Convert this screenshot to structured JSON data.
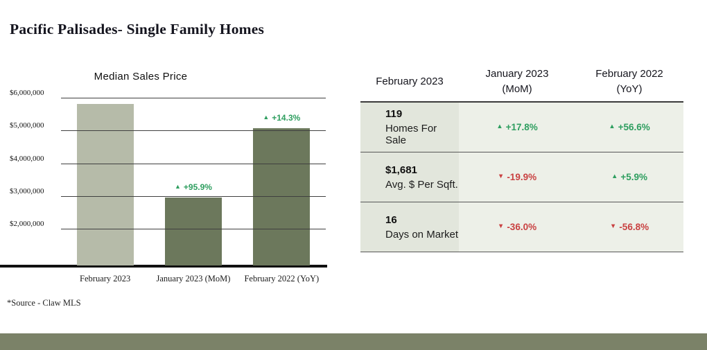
{
  "page": {
    "title": "Pacific Palisades- Single Family Homes",
    "source_note": "*Source - Claw MLS"
  },
  "colors": {
    "green": "#2e9e5f",
    "red": "#c94141",
    "band": "#7b8268",
    "row-bg-first": "#e2e6dc",
    "row-bg": "#edf0e8"
  },
  "chart_data": [
    {
      "type": "bar",
      "title": "Median Sales Price",
      "categories": [
        "February 2023",
        "January 2023 (MoM)",
        "February 2022 (YoY)"
      ],
      "values": [
        5830000,
        2980000,
        5100000
      ],
      "bar_colors": [
        "#b6bba9",
        "#6c785c",
        "#6c785c"
      ],
      "annotations": [
        null,
        {
          "arrow": "▲",
          "text": "+95.9%"
        },
        {
          "arrow": "▲",
          "text": "+14.3%"
        }
      ],
      "ylim": [
        900000,
        6150000
      ],
      "yticks": [
        2000000,
        3000000,
        4000000,
        5000000,
        6000000
      ],
      "ytick_labels": [
        "$2,000,000",
        "$3,000,000",
        "$4,000,000",
        "$5,000,000",
        "$6,000,000"
      ],
      "xlabel": "",
      "ylabel": "",
      "grid": true,
      "legend": false
    },
    {
      "type": "table",
      "columns": [
        "February 2023",
        "January 2023 (MoM)",
        "February 2022 (YoY)"
      ],
      "rows": [
        [
          "119 Homes For Sale",
          "+17.8%",
          "+56.6%"
        ],
        [
          "$1,681 Avg. $ Per Sqft.",
          "-19.9%",
          "+5.9%"
        ],
        [
          "16 Days on Market",
          "-36.0%",
          "-56.8%"
        ]
      ]
    }
  ],
  "table": {
    "headers": [
      {
        "line1": "February 2023",
        "line2": ""
      },
      {
        "line1": "January 2023",
        "line2": "(MoM)"
      },
      {
        "line1": "February 2022",
        "line2": "(YoY)"
      }
    ],
    "rows": [
      {
        "value": "119",
        "label": "Homes For Sale",
        "mom": {
          "arrow": "▲",
          "text": "+17.8%",
          "dir": "up"
        },
        "yoy": {
          "arrow": "▲",
          "text": "+56.6%",
          "dir": "up"
        }
      },
      {
        "value": "$1,681",
        "label": "Avg. $ Per Sqft.",
        "mom": {
          "arrow": "▼",
          "text": "-19.9%",
          "dir": "down"
        },
        "yoy": {
          "arrow": "▲",
          "text": "+5.9%",
          "dir": "up"
        }
      },
      {
        "value": "16",
        "label": "Days on Market",
        "mom": {
          "arrow": "▼",
          "text": "-36.0%",
          "dir": "down"
        },
        "yoy": {
          "arrow": "▼",
          "text": "-56.8%",
          "dir": "down"
        }
      }
    ]
  }
}
